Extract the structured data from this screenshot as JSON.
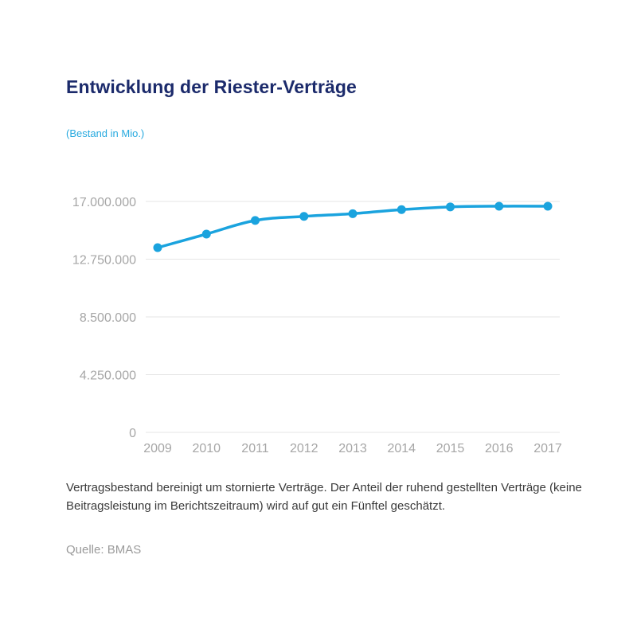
{
  "title": "Entwicklung der Riester-Verträge",
  "unit_label": "(Bestand in Mio.)",
  "note": "Vertragsbestand bereinigt um stornierte Verträge. Der Anteil der ruhend gestellten Verträge (keine Beitragsleistung im Berichtszeitraum) wird auf gut ein Fünftel geschätzt.",
  "source": "Quelle: BMAS",
  "colors": {
    "title": "#1b2a6b",
    "accent": "#26a9df",
    "line": "#1aa3de",
    "grid": "#e6e6e6",
    "tick": "#a6a6a6"
  },
  "chart_data": {
    "type": "line",
    "x": [
      "2009",
      "2010",
      "2011",
      "2012",
      "2013",
      "2014",
      "2015",
      "2016",
      "2017"
    ],
    "series": [
      {
        "values": [
          13600000,
          14600000,
          15600000,
          15900000,
          16100000,
          16400000,
          16600000,
          16650000,
          16650000
        ]
      }
    ],
    "yticks": [
      0,
      4250000,
      8500000,
      12750000,
      17000000
    ],
    "ytick_labels": [
      "0",
      "4.250.000",
      "8.500.000",
      "12.750.000",
      "17.000.000"
    ],
    "ylim": [
      0,
      17000000
    ],
    "grid": true,
    "legend": false
  }
}
